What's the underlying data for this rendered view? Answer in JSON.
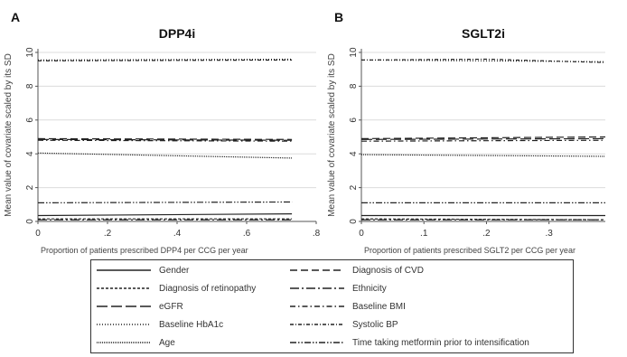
{
  "chart_data": [
    {
      "type": "line",
      "panel_label": "A",
      "title": "DPP4i",
      "xlabel": "Proportion of patients prescribed DPP4 per CCG per year",
      "ylabel": "Mean value of covariate scaled by its SD",
      "xlim": [
        0,
        0.8
      ],
      "ylim": [
        0,
        10
      ],
      "xticks": [
        0,
        0.2,
        0.4,
        0.6,
        0.8
      ],
      "xtick_labels": [
        "0",
        ".2",
        ".4",
        ".6",
        ".8"
      ],
      "yticks": [
        0,
        2,
        4,
        6,
        8,
        10
      ],
      "ytick_labels": [
        "0",
        "2",
        "4",
        "6",
        "8",
        "10"
      ],
      "grid": true,
      "series": [
        {
          "name": "Gender",
          "x": [
            0,
            0.73
          ],
          "y": [
            0.35,
            0.45
          ]
        },
        {
          "name": "Diagnosis of retinopathy",
          "x": [
            0,
            0.73
          ],
          "y": [
            0.15,
            0.15
          ]
        },
        {
          "name": "eGFR",
          "x": [
            0,
            0.73
          ],
          "y": [
            4.85,
            4.8
          ]
        },
        {
          "name": "Baseline HbA1c",
          "x": [
            0,
            0.73
          ],
          "y": [
            9.55,
            9.6
          ]
        },
        {
          "name": "Age",
          "x": [
            0,
            0.73
          ],
          "y": [
            4.05,
            3.75
          ]
        },
        {
          "name": "Diagnosis of CVD",
          "x": [
            0,
            0.73
          ],
          "y": [
            4.9,
            4.85
          ]
        },
        {
          "name": "Ethnicity",
          "x": [
            0,
            0.73
          ],
          "y": [
            0.1,
            0.1
          ]
        },
        {
          "name": "Baseline BMI",
          "x": [
            0,
            0.73
          ],
          "y": [
            4.8,
            4.75
          ]
        },
        {
          "name": "Systolic BP",
          "x": [
            0,
            0.73
          ],
          "y": [
            9.5,
            9.55
          ]
        },
        {
          "name": "Time taking metformin prior to intensification",
          "x": [
            0,
            0.73
          ],
          "y": [
            1.1,
            1.15
          ]
        }
      ]
    },
    {
      "type": "line",
      "panel_label": "B",
      "title": "SGLT2i",
      "xlabel": "Proportion of patients prescribed SGLT2 per CCG per year",
      "ylabel": "Mean value of covariate scaled by its SD",
      "xlim": [
        0,
        0.39
      ],
      "ylim": [
        0,
        10
      ],
      "xticks": [
        0,
        0.1,
        0.2,
        0.3
      ],
      "xtick_labels": [
        "0",
        ".1",
        ".2",
        ".3"
      ],
      "yticks": [
        0,
        2,
        4,
        6,
        8,
        10
      ],
      "ytick_labels": [
        "0",
        "2",
        "4",
        "6",
        "8",
        "10"
      ],
      "grid": true,
      "series": [
        {
          "name": "Gender",
          "x": [
            0,
            0.39
          ],
          "y": [
            0.35,
            0.35
          ]
        },
        {
          "name": "Diagnosis of retinopathy",
          "x": [
            0,
            0.39
          ],
          "y": [
            0.15,
            0.1
          ]
        },
        {
          "name": "eGFR",
          "x": [
            0,
            0.39
          ],
          "y": [
            4.85,
            4.9
          ]
        },
        {
          "name": "Baseline HbA1c",
          "x": [
            0,
            0.39
          ],
          "y": [
            9.55,
            9.45
          ]
        },
        {
          "name": "Age",
          "x": [
            0,
            0.39
          ],
          "y": [
            3.95,
            3.85
          ]
        },
        {
          "name": "Diagnosis of CVD",
          "x": [
            0,
            0.39
          ],
          "y": [
            4.9,
            5.0
          ]
        },
        {
          "name": "Ethnicity",
          "x": [
            0,
            0.39
          ],
          "y": [
            0.1,
            0.1
          ]
        },
        {
          "name": "Baseline BMI",
          "x": [
            0,
            0.39
          ],
          "y": [
            4.75,
            4.8
          ]
        },
        {
          "name": "Systolic BP",
          "x": [
            0,
            0.2,
            0.39
          ],
          "y": [
            9.55,
            9.6,
            9.4
          ]
        },
        {
          "name": "Time taking metformin prior to intensification",
          "x": [
            0,
            0.39
          ],
          "y": [
            1.1,
            1.1
          ]
        }
      ]
    }
  ],
  "legend": {
    "items": [
      {
        "label": "Gender",
        "style": "solid"
      },
      {
        "label": "Diagnosis of retinopathy",
        "style": "short-dash"
      },
      {
        "label": "eGFR",
        "style": "long-dash"
      },
      {
        "label": "Baseline HbA1c",
        "style": "dot"
      },
      {
        "label": "Age",
        "style": "dense-dot"
      },
      {
        "label": "Diagnosis of CVD",
        "style": "medium-dash"
      },
      {
        "label": "Ethnicity",
        "style": "long-dash-dot"
      },
      {
        "label": "Baseline BMI",
        "style": "dash-dot"
      },
      {
        "label": "Systolic BP",
        "style": "short-dash-dot"
      },
      {
        "label": "Time taking metformin prior to intensification",
        "style": "dash-dot-dot"
      }
    ]
  },
  "colors": {
    "grid": "#dcdcdc",
    "line": "#222222",
    "axis": "#555555"
  }
}
